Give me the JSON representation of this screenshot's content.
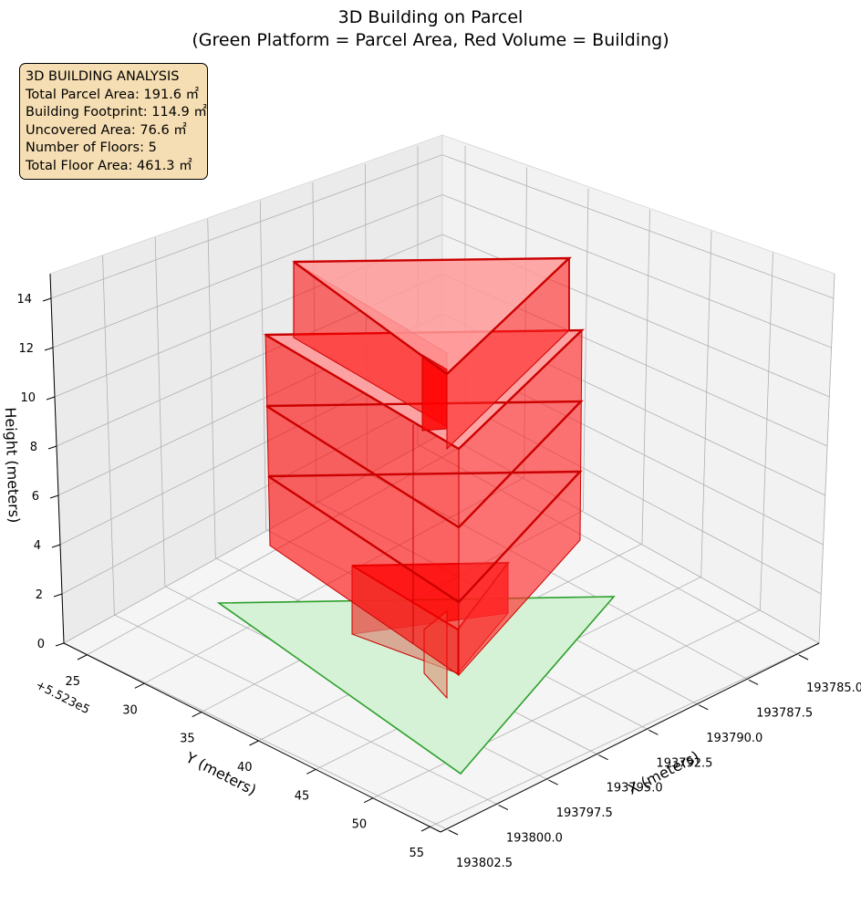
{
  "title_line1": "3D Building on Parcel",
  "title_line2": "(Green Platform = Parcel Area, Red Volume = Building)",
  "info_box": {
    "heading": "3D BUILDING ANALYSIS",
    "lines": [
      "Total Parcel Area: 191.6 ㎡",
      "Building Footprint: 114.9 ㎡",
      "Uncovered Area: 76.6 ㎡",
      "Number of Floors: 5",
      "Total Floor Area: 461.3 ㎡"
    ]
  },
  "colors": {
    "parcel_fill": "#d6f2d6",
    "parcel_edge": "#2ca02c",
    "building_fill": "#ff0000",
    "building_edge": "#cc0000",
    "info_box_bg": "#f5deb3"
  },
  "chart_data": {
    "type": "3d-polygon",
    "title": "3D Building on Parcel\n(Green Platform = Parcel Area, Red Volume = Building)",
    "xlabel": "X (meters)",
    "ylabel": "Y (meters)",
    "zlabel": "Height (meters)",
    "y_offset_label": "+5.523e5",
    "x_ticks": [
      "193785.0",
      "193787.5",
      "193790.0",
      "193792.5",
      "193795.0",
      "193797.5",
      "193800.0",
      "193802.5"
    ],
    "y_ticks": [
      "25",
      "30",
      "35",
      "40",
      "45",
      "50",
      "55"
    ],
    "z_ticks": [
      "0",
      "2",
      "4",
      "6",
      "8",
      "10",
      "12",
      "14"
    ],
    "zlim": [
      0,
      15
    ],
    "grid": true,
    "parcel": {
      "name": "Parcel Area",
      "area_m2": 191.6,
      "height": 0
    },
    "building": {
      "name": "Building",
      "footprint_m2": 114.9,
      "floors": 5,
      "floor_height_m": 3,
      "total_floor_area_m2": 461.3,
      "floor_base_heights": [
        0,
        3,
        6,
        9,
        12
      ]
    },
    "uncovered_area_m2": 76.6
  }
}
